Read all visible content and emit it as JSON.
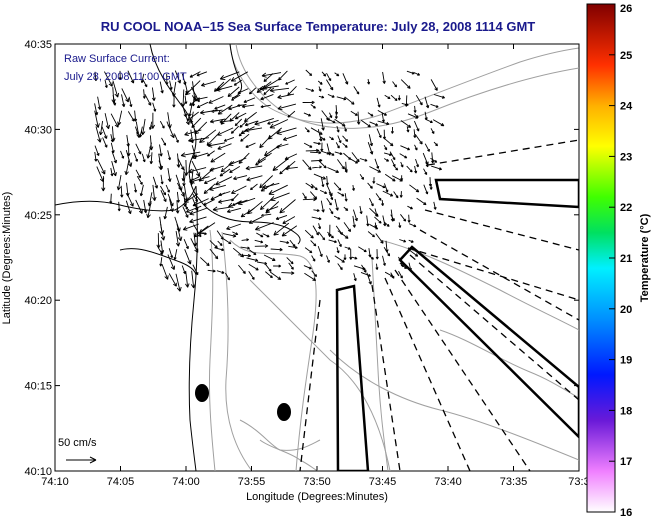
{
  "title": "RU COOL  NOAA–15  Sea Surface Temperature:  July 28, 2008 1114 GMT",
  "annotation": {
    "line1": "Raw Surface Current:",
    "line2": "July 28, 2008 11:00 GMT"
  },
  "scale_label": "50 cm/s",
  "xlabel": "Longitude (Degrees:Minutes)",
  "ylabel": "Latitude (Degrees:Minutes)",
  "x_ticks": [
    "74:10",
    "74:05",
    "74:00",
    "73:55",
    "73:50",
    "73:45",
    "73:40",
    "73:35",
    "73:3"
  ],
  "y_ticks": [
    "40:35",
    "40:30",
    "40:25",
    "40:20",
    "40:15",
    "40:10"
  ],
  "colorbar": {
    "label": "Temperature (°C)",
    "ticks": [
      "26",
      "25",
      "24",
      "23",
      "22",
      "21",
      "20",
      "19",
      "18",
      "17",
      "16"
    ],
    "min": 16,
    "max": 26
  },
  "colors": {
    "title": "#1a1a8c",
    "vectors": "#000000",
    "bathymetry": "#999999",
    "coast": "#000000"
  }
}
